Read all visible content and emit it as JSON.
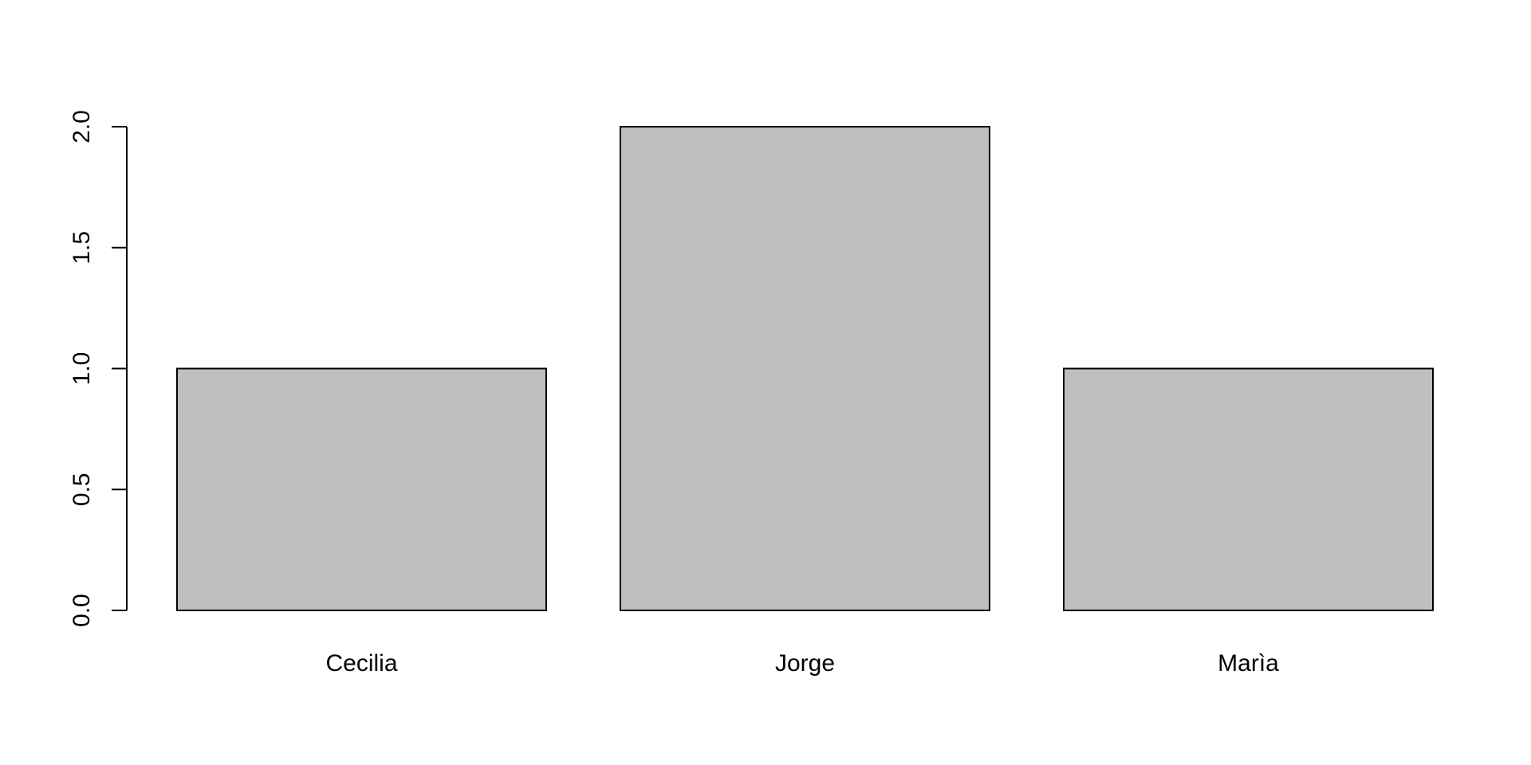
{
  "chart_data": {
    "type": "bar",
    "title": "",
    "xlabel": "",
    "ylabel": "",
    "categories": [
      "Cecilia",
      "Jorge",
      "Marìa"
    ],
    "values": [
      1,
      2,
      1
    ],
    "ylim": [
      0,
      2
    ],
    "yticks": [
      0,
      0.5,
      1,
      1.5,
      2
    ],
    "ytick_labels": [
      "0.0",
      "0.5",
      "1.0",
      "1.5",
      "2.0"
    ],
    "grid": false,
    "legend": "none",
    "colors": {
      "bar_fill": "#bebebe",
      "bar_stroke": "#000000",
      "axis": "#000000",
      "background": "#ffffff"
    }
  }
}
